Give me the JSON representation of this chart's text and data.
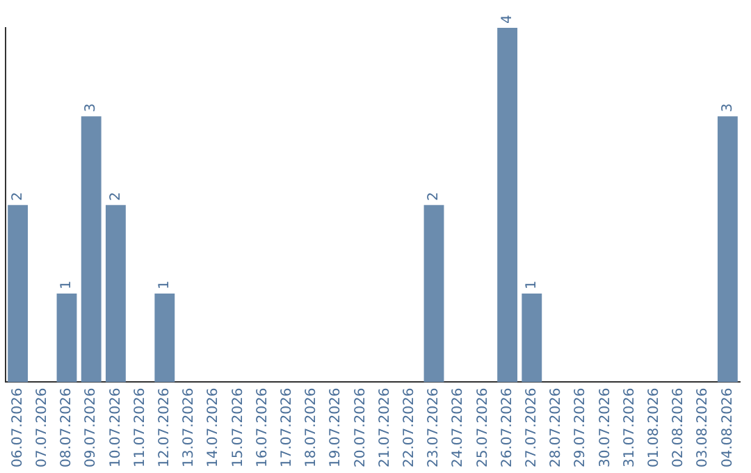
{
  "chart_data": {
    "type": "bar",
    "categories": [
      "06.07.2026",
      "07.07.2026",
      "08.07.2026",
      "09.07.2026",
      "10.07.2026",
      "11.07.2026",
      "12.07.2026",
      "13.07.2026",
      "14.07.2026",
      "15.07.2026",
      "16.07.2026",
      "17.07.2026",
      "18.07.2026",
      "19.07.2026",
      "20.07.2026",
      "21.07.2026",
      "22.07.2026",
      "23.07.2026",
      "24.07.2026",
      "25.07.2026",
      "26.07.2026",
      "27.07.2026",
      "28.07.2026",
      "29.07.2026",
      "30.07.2026",
      "31.07.2026",
      "01.08.2026",
      "02.08.2026",
      "03.08.2026",
      "04.08.2026"
    ],
    "values": [
      2,
      0,
      1,
      3,
      2,
      0,
      1,
      0,
      0,
      0,
      0,
      0,
      0,
      0,
      0,
      0,
      0,
      2,
      0,
      0,
      4,
      1,
      0,
      0,
      0,
      0,
      0,
      0,
      0,
      3
    ],
    "value_labels": [
      "2",
      null,
      "1",
      "3",
      "2",
      null,
      "1",
      null,
      null,
      null,
      null,
      null,
      null,
      null,
      null,
      null,
      null,
      "2",
      null,
      null,
      "4",
      "1",
      null,
      null,
      null,
      null,
      null,
      null,
      null,
      "3"
    ],
    "color": "#6b8cae",
    "grid": false,
    "legend": false
  }
}
